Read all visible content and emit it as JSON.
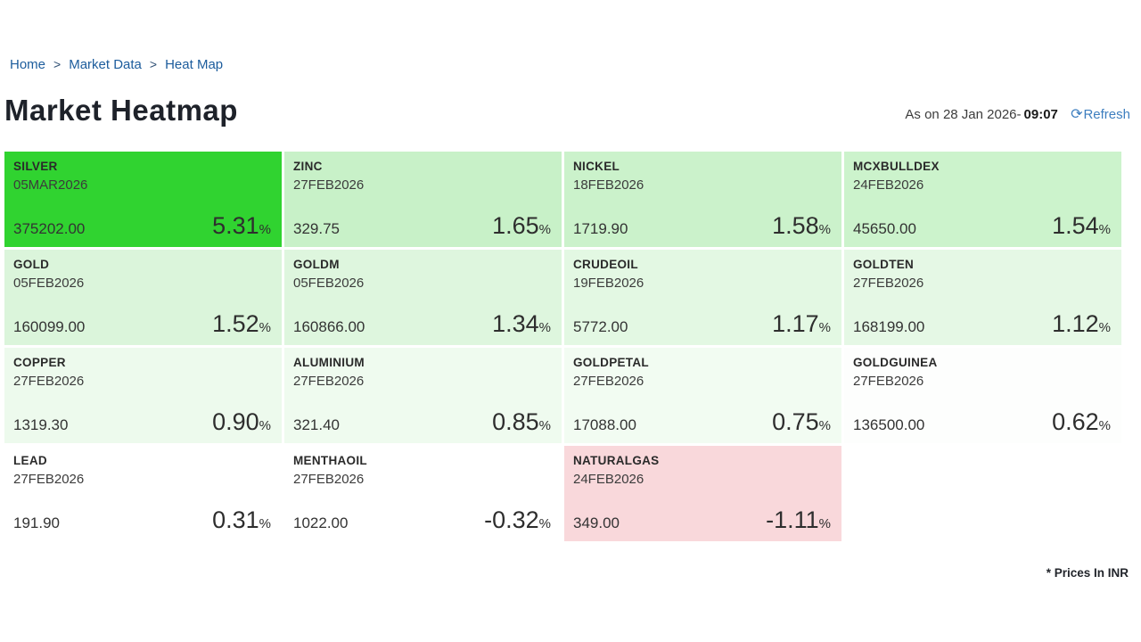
{
  "breadcrumb": {
    "separator": ">",
    "items": [
      {
        "label": "Home"
      },
      {
        "label": "Market Data"
      },
      {
        "label": "Heat Map"
      }
    ]
  },
  "header": {
    "title": "Market Heatmap",
    "as_on_label": "As on 28 Jan 2026-",
    "as_on_time": "09:07",
    "refresh_icon": "⟳",
    "refresh_label": "Refresh"
  },
  "heatmap": {
    "percent_symbol": "%",
    "tiles": [
      {
        "symbol": "SILVER",
        "expiry": "05MAR2026",
        "price": "375202.00",
        "change": "5.31",
        "bg": "#30d330"
      },
      {
        "symbol": "ZINC",
        "expiry": "27FEB2026",
        "price": "329.75",
        "change": "1.65",
        "bg": "#c8f1c8"
      },
      {
        "symbol": "NICKEL",
        "expiry": "18FEB2026",
        "price": "1719.90",
        "change": "1.58",
        "bg": "#cbf2cb"
      },
      {
        "symbol": "MCXBULLDEX",
        "expiry": "24FEB2026",
        "price": "45650.00",
        "change": "1.54",
        "bg": "#ccf3cc"
      },
      {
        "symbol": "GOLD",
        "expiry": "05FEB2026",
        "price": "160099.00",
        "change": "1.52",
        "bg": "#dbf5db"
      },
      {
        "symbol": "GOLDM",
        "expiry": "05FEB2026",
        "price": "160866.00",
        "change": "1.34",
        "bg": "#def6de"
      },
      {
        "symbol": "CRUDEOIL",
        "expiry": "19FEB2026",
        "price": "5772.00",
        "change": "1.17",
        "bg": "#e3f8e3"
      },
      {
        "symbol": "GOLDTEN",
        "expiry": "27FEB2026",
        "price": "168199.00",
        "change": "1.12",
        "bg": "#e5f8e5"
      },
      {
        "symbol": "COPPER",
        "expiry": "27FEB2026",
        "price": "1319.30",
        "change": "0.90",
        "bg": "#edfaed"
      },
      {
        "symbol": "ALUMINIUM",
        "expiry": "27FEB2026",
        "price": "321.40",
        "change": "0.85",
        "bg": "#effbef"
      },
      {
        "symbol": "GOLDPETAL",
        "expiry": "27FEB2026",
        "price": "17088.00",
        "change": "0.75",
        "bg": "#f2fcf2"
      },
      {
        "symbol": "GOLDGUINEA",
        "expiry": "27FEB2026",
        "price": "136500.00",
        "change": "0.62",
        "bg": "#fdfefd"
      },
      {
        "symbol": "LEAD",
        "expiry": "27FEB2026",
        "price": "191.90",
        "change": "0.31",
        "bg": "#ffffff"
      },
      {
        "symbol": "MENTHAOIL",
        "expiry": "27FEB2026",
        "price": "1022.00",
        "change": "-0.32",
        "bg": "#ffffff"
      },
      {
        "symbol": "NATURALGAS",
        "expiry": "24FEB2026",
        "price": "349.00",
        "change": "-1.11",
        "bg": "#f9d8db"
      }
    ]
  },
  "footer": {
    "note": "* Prices In INR"
  }
}
